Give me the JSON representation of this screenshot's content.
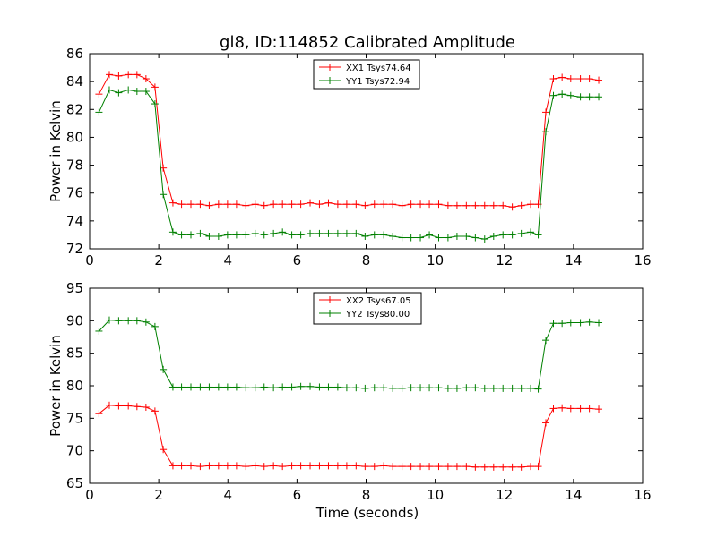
{
  "figure": {
    "title": "gl8, ID:114852 Calibrated Amplitude",
    "xlabel": "Time (seconds)"
  },
  "chart_data": [
    {
      "type": "line",
      "title": "gl8, ID:114852 Calibrated Amplitude",
      "xlabel": "",
      "ylabel": "Power in Kelvin",
      "xlim": [
        0,
        16
      ],
      "ylim": [
        72,
        86
      ],
      "xticks": [
        "0",
        "2",
        "4",
        "6",
        "8",
        "10",
        "12",
        "14",
        "16"
      ],
      "yticks": [
        "72",
        "74",
        "76",
        "78",
        "80",
        "82",
        "84",
        "86"
      ],
      "grid": false,
      "legend_position": "top-center",
      "x": [
        0.27,
        0.57,
        0.84,
        1.12,
        1.37,
        1.63,
        1.89,
        2.13,
        2.41,
        2.66,
        2.93,
        3.2,
        3.46,
        3.73,
        3.99,
        4.25,
        4.52,
        4.79,
        5.05,
        5.32,
        5.58,
        5.85,
        6.11,
        6.38,
        6.65,
        6.91,
        7.18,
        7.44,
        7.71,
        7.97,
        8.24,
        8.51,
        8.77,
        9.04,
        9.3,
        9.57,
        9.83,
        10.1,
        10.37,
        10.63,
        10.9,
        11.16,
        11.43,
        11.69,
        11.96,
        12.23,
        12.49,
        12.76,
        12.98,
        13.2,
        13.42,
        13.67,
        13.92,
        14.2,
        14.46,
        14.73
      ],
      "series": [
        {
          "name": "XX1 Tsys74.64",
          "color": "#ff0000",
          "values": [
            83.1,
            84.5,
            84.4,
            84.5,
            84.5,
            84.2,
            83.6,
            77.8,
            75.3,
            75.2,
            75.2,
            75.2,
            75.1,
            75.2,
            75.2,
            75.2,
            75.1,
            75.2,
            75.1,
            75.2,
            75.2,
            75.2,
            75.2,
            75.3,
            75.2,
            75.3,
            75.2,
            75.2,
            75.2,
            75.1,
            75.2,
            75.2,
            75.2,
            75.1,
            75.2,
            75.2,
            75.2,
            75.2,
            75.1,
            75.1,
            75.1,
            75.1,
            75.1,
            75.1,
            75.1,
            75.0,
            75.1,
            75.2,
            75.2,
            81.8,
            84.2,
            84.3,
            84.2,
            84.2,
            84.2,
            84.1
          ]
        },
        {
          "name": "YY1 Tsys72.94",
          "color": "#008000",
          "values": [
            81.8,
            83.4,
            83.2,
            83.4,
            83.3,
            83.3,
            82.4,
            75.9,
            73.2,
            73.0,
            73.0,
            73.1,
            72.9,
            72.9,
            73.0,
            73.0,
            73.0,
            73.1,
            73.0,
            73.1,
            73.2,
            73.0,
            73.0,
            73.1,
            73.1,
            73.1,
            73.1,
            73.1,
            73.1,
            72.9,
            73.0,
            73.0,
            72.9,
            72.8,
            72.8,
            72.8,
            73.0,
            72.8,
            72.8,
            72.9,
            72.9,
            72.8,
            72.7,
            72.9,
            73.0,
            73.0,
            73.1,
            73.2,
            73.0,
            80.4,
            83.0,
            83.1,
            83.0,
            82.9,
            82.9,
            82.9
          ]
        }
      ]
    },
    {
      "type": "line",
      "title": "",
      "xlabel": "Time (seconds)",
      "ylabel": "Power in Kelvin",
      "xlim": [
        0,
        16
      ],
      "ylim": [
        65,
        95
      ],
      "xticks": [
        "0",
        "2",
        "4",
        "6",
        "8",
        "10",
        "12",
        "14",
        "16"
      ],
      "yticks": [
        "65",
        "70",
        "75",
        "80",
        "85",
        "90",
        "95"
      ],
      "grid": false,
      "legend_position": "top-center",
      "x": [
        0.27,
        0.57,
        0.84,
        1.12,
        1.37,
        1.63,
        1.89,
        2.13,
        2.41,
        2.66,
        2.93,
        3.2,
        3.46,
        3.73,
        3.99,
        4.25,
        4.52,
        4.79,
        5.05,
        5.32,
        5.58,
        5.85,
        6.11,
        6.38,
        6.65,
        6.91,
        7.18,
        7.44,
        7.71,
        7.97,
        8.24,
        8.51,
        8.77,
        9.04,
        9.3,
        9.57,
        9.83,
        10.1,
        10.37,
        10.63,
        10.9,
        11.16,
        11.43,
        11.69,
        11.96,
        12.23,
        12.49,
        12.76,
        12.98,
        13.2,
        13.42,
        13.67,
        13.92,
        14.2,
        14.46,
        14.73
      ],
      "series": [
        {
          "name": "XX2 Tsys67.05",
          "color": "#ff0000",
          "values": [
            75.7,
            77.0,
            76.9,
            76.9,
            76.8,
            76.7,
            76.1,
            70.2,
            67.7,
            67.7,
            67.7,
            67.6,
            67.7,
            67.7,
            67.7,
            67.7,
            67.6,
            67.7,
            67.6,
            67.7,
            67.6,
            67.7,
            67.7,
            67.7,
            67.7,
            67.7,
            67.7,
            67.7,
            67.7,
            67.6,
            67.6,
            67.7,
            67.6,
            67.6,
            67.6,
            67.6,
            67.6,
            67.6,
            67.6,
            67.6,
            67.6,
            67.5,
            67.5,
            67.5,
            67.5,
            67.5,
            67.5,
            67.6,
            67.6,
            74.3,
            76.5,
            76.6,
            76.5,
            76.5,
            76.5,
            76.4
          ]
        },
        {
          "name": "YY2 Tsys80.00",
          "color": "#008000",
          "values": [
            88.4,
            90.1,
            90.0,
            90.0,
            90.0,
            89.8,
            89.1,
            82.5,
            79.8,
            79.8,
            79.8,
            79.8,
            79.8,
            79.8,
            79.8,
            79.8,
            79.7,
            79.7,
            79.8,
            79.7,
            79.8,
            79.8,
            79.9,
            79.9,
            79.8,
            79.8,
            79.8,
            79.7,
            79.7,
            79.6,
            79.7,
            79.7,
            79.6,
            79.6,
            79.7,
            79.7,
            79.7,
            79.7,
            79.6,
            79.6,
            79.7,
            79.7,
            79.6,
            79.6,
            79.6,
            79.6,
            79.6,
            79.6,
            79.5,
            87.0,
            89.6,
            89.6,
            89.7,
            89.7,
            89.8,
            89.7
          ]
        }
      ]
    }
  ]
}
